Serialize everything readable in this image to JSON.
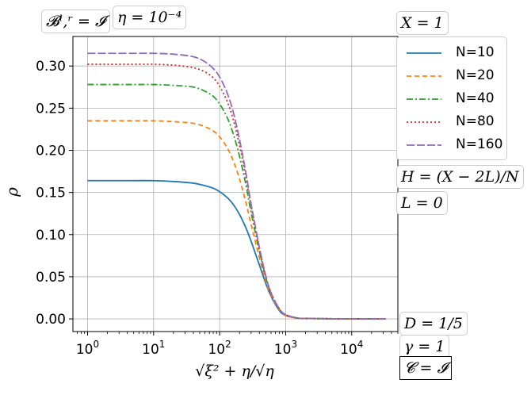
{
  "chart_data": {
    "type": "line",
    "xlabel": "√ξ² + η/√η",
    "ylabel": "ρ",
    "xscale": "log",
    "xlim": [
      0.6,
      50000
    ],
    "ylim": [
      -0.015,
      0.335
    ],
    "grid": true,
    "legend_placement": "right",
    "x_ticks": [
      {
        "value": 1,
        "base": "10",
        "exp": "0"
      },
      {
        "value": 10,
        "base": "10",
        "exp": "1"
      },
      {
        "value": 100,
        "base": "10",
        "exp": "2"
      },
      {
        "value": 1000,
        "base": "10",
        "exp": "3"
      },
      {
        "value": 10000,
        "base": "10",
        "exp": "4"
      }
    ],
    "y_ticks": [
      "0.00",
      "0.05",
      "0.10",
      "0.15",
      "0.20",
      "0.25",
      "0.30"
    ],
    "x": [
      1,
      2,
      5,
      10,
      20,
      40,
      60,
      80,
      100,
      130,
      160,
      200,
      250,
      300,
      400,
      500,
      600,
      800,
      1000,
      1500,
      2000,
      5000,
      10000,
      33000
    ],
    "series": [
      {
        "name": "N=10",
        "color": "#1f77b4",
        "dash": "solid",
        "values": [
          0.164,
          0.164,
          0.164,
          0.164,
          0.163,
          0.161,
          0.158,
          0.155,
          0.151,
          0.144,
          0.136,
          0.124,
          0.108,
          0.092,
          0.064,
          0.042,
          0.027,
          0.01,
          0.004,
          0.001,
          0.0005,
          0.0002,
          0.0001,
          0.0001
        ]
      },
      {
        "name": "N=20",
        "color": "#ff7f0e",
        "dash": "6,4",
        "values": [
          0.235,
          0.235,
          0.235,
          0.235,
          0.234,
          0.232,
          0.228,
          0.223,
          0.216,
          0.203,
          0.188,
          0.166,
          0.138,
          0.112,
          0.073,
          0.045,
          0.028,
          0.011,
          0.004,
          0.001,
          0.0005,
          0.0002,
          0.0001,
          0.0001
        ]
      },
      {
        "name": "N=40",
        "color": "#2ca02c",
        "dash": "8,3,2,3",
        "values": [
          0.278,
          0.278,
          0.278,
          0.278,
          0.277,
          0.275,
          0.27,
          0.264,
          0.255,
          0.239,
          0.22,
          0.193,
          0.159,
          0.126,
          0.08,
          0.049,
          0.03,
          0.012,
          0.005,
          0.001,
          0.0005,
          0.0002,
          0.0001,
          0.0001
        ]
      },
      {
        "name": "N=80",
        "color": "#d62728",
        "dash": "2,3",
        "values": [
          0.302,
          0.302,
          0.302,
          0.302,
          0.301,
          0.298,
          0.293,
          0.286,
          0.276,
          0.258,
          0.237,
          0.206,
          0.168,
          0.133,
          0.083,
          0.05,
          0.031,
          0.012,
          0.005,
          0.001,
          0.0005,
          0.0002,
          0.0001,
          0.0001
        ]
      },
      {
        "name": "N=160",
        "color": "#9467bd",
        "dash": "10,3",
        "values": [
          0.315,
          0.315,
          0.315,
          0.315,
          0.314,
          0.311,
          0.305,
          0.297,
          0.287,
          0.268,
          0.246,
          0.213,
          0.173,
          0.136,
          0.085,
          0.051,
          0.031,
          0.012,
          0.005,
          0.001,
          0.0005,
          0.0002,
          0.0001,
          0.0001
        ]
      }
    ],
    "annotations": {
      "top_left_1": "𝓑ˡ,ʳ = 𝓘",
      "top_left_2": "η = 10⁻⁴",
      "legend_title": "X = 1",
      "right_1": "H = (X − 2L)/N",
      "right_2": "L = 0",
      "right_3": "D = 1/5",
      "right_4": "γ = 1",
      "right_5": "𝓒 = 𝓘"
    }
  }
}
